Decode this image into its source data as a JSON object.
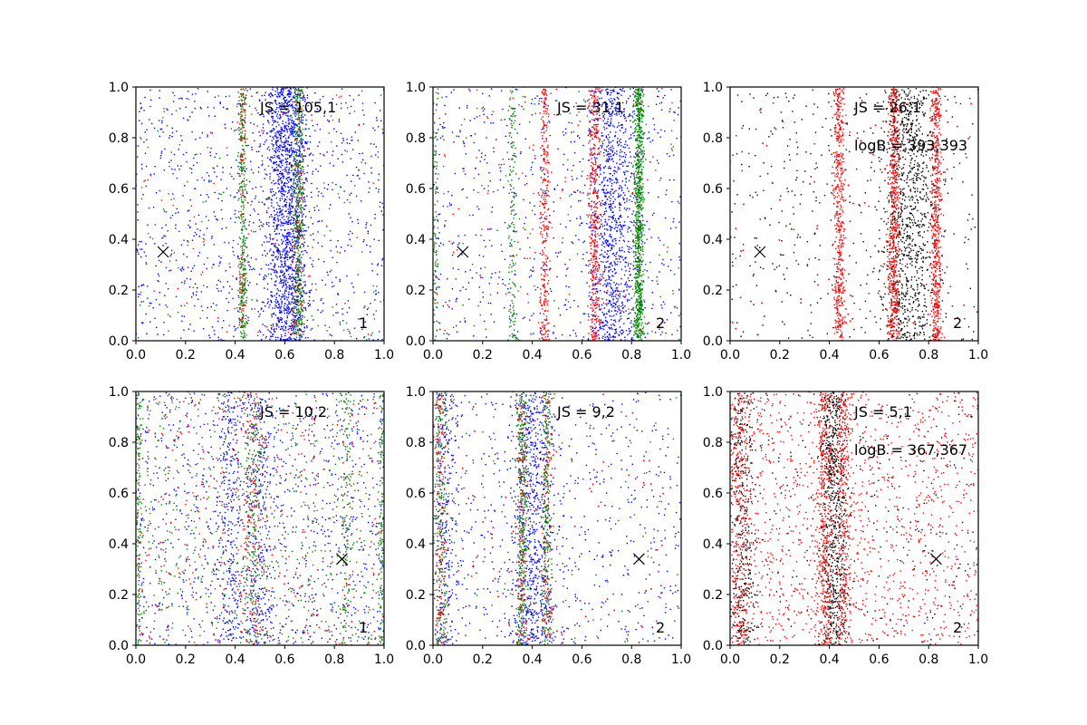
{
  "chart_data": [
    {
      "type": "scatter",
      "panel": "1",
      "annotations": [
        "JS = 105,1"
      ],
      "xlim": [
        0,
        1
      ],
      "ylim": [
        0,
        1
      ],
      "xticks": [
        "0.0",
        "0.2",
        "0.4",
        "0.6",
        "0.8",
        "1.0"
      ],
      "yticks": [
        "0.0",
        "0.2",
        "0.4",
        "0.6",
        "0.8",
        "1.0"
      ],
      "marker": {
        "x": 0.11,
        "y": 0.35
      },
      "series": [
        {
          "color": "#0000ff",
          "bands": [
            {
              "c": 0.61,
              "w": 0.085,
              "n": 1500
            },
            {
              "c": 0.5,
              "w": 0.55,
              "n": 900
            }
          ]
        },
        {
          "color": "#008000",
          "bands": [
            {
              "c": 0.43,
              "w": 0.016,
              "n": 360
            },
            {
              "c": 0.655,
              "w": 0.022,
              "n": 480
            },
            {
              "c": 0.5,
              "w": 0.55,
              "n": 120
            }
          ]
        },
        {
          "color": "#ff0000",
          "bands": [
            {
              "c": 0.43,
              "w": 0.016,
              "n": 90
            },
            {
              "c": 0.655,
              "w": 0.022,
              "n": 110
            },
            {
              "c": 0.5,
              "w": 0.55,
              "n": 120
            }
          ]
        }
      ]
    },
    {
      "type": "scatter",
      "panel": "2",
      "annotations": [
        "JS = 31,1"
      ],
      "xlim": [
        0,
        1
      ],
      "ylim": [
        0,
        1
      ],
      "xticks": [
        "0.0",
        "0.2",
        "0.4",
        "0.6",
        "0.8",
        "1.0"
      ],
      "yticks": [
        "0.0",
        "0.2",
        "0.4",
        "0.6",
        "0.8",
        "1.0"
      ],
      "marker": {
        "x": 0.12,
        "y": 0.35
      },
      "series": [
        {
          "color": "#0000ff",
          "bands": [
            {
              "c": 0.72,
              "w": 0.09,
              "n": 900
            },
            {
              "c": 0.5,
              "w": 0.55,
              "n": 700
            }
          ]
        },
        {
          "color": "#008000",
          "bands": [
            {
              "c": 0.83,
              "w": 0.02,
              "n": 900
            },
            {
              "c": 0.32,
              "w": 0.016,
              "n": 140
            },
            {
              "c": 0.01,
              "w": 0.012,
              "n": 90
            },
            {
              "c": 0.5,
              "w": 0.55,
              "n": 120
            }
          ]
        },
        {
          "color": "#ff0000",
          "bands": [
            {
              "c": 0.45,
              "w": 0.02,
              "n": 300
            },
            {
              "c": 0.65,
              "w": 0.022,
              "n": 420
            },
            {
              "c": 0.5,
              "w": 0.55,
              "n": 150
            }
          ]
        }
      ]
    },
    {
      "type": "scatter",
      "panel": "2",
      "annotations": [
        "JS = 26,1",
        "logB = 393,393"
      ],
      "xlim": [
        0,
        1
      ],
      "ylim": [
        0,
        1
      ],
      "xticks": [
        "0.0",
        "0.2",
        "0.4",
        "0.6",
        "0.8",
        "1.0"
      ],
      "yticks": [
        "0.0",
        "0.2",
        "0.4",
        "0.6",
        "0.8",
        "1.0"
      ],
      "marker": {
        "x": 0.12,
        "y": 0.35
      },
      "series": [
        {
          "color": "#000000",
          "bands": [
            {
              "c": 0.72,
              "w": 0.11,
              "n": 1000
            },
            {
              "c": 0.5,
              "w": 0.55,
              "n": 500
            }
          ]
        },
        {
          "color": "#ff0000",
          "bands": [
            {
              "c": 0.44,
              "w": 0.022,
              "n": 500
            },
            {
              "c": 0.66,
              "w": 0.025,
              "n": 600
            },
            {
              "c": 0.83,
              "w": 0.022,
              "n": 550
            },
            {
              "c": 0.5,
              "w": 0.55,
              "n": 150
            }
          ]
        }
      ]
    },
    {
      "type": "scatter",
      "panel": "1",
      "annotations": [
        "JS = 10,2"
      ],
      "xlim": [
        0,
        1
      ],
      "ylim": [
        0,
        1
      ],
      "xticks": [
        "0.0",
        "0.2",
        "0.4",
        "0.6",
        "0.8",
        "1.0"
      ],
      "yticks": [
        "0.0",
        "0.2",
        "0.4",
        "0.6",
        "0.8",
        "1.0"
      ],
      "marker": {
        "x": 0.83,
        "y": 0.34
      },
      "series": [
        {
          "color": "#0000ff",
          "bands": [
            {
              "c": 0.5,
              "w": 0.55,
              "n": 1100
            },
            {
              "c": 0.38,
              "w": 0.05,
              "n": 250
            },
            {
              "c": 0.5,
              "w": 0.05,
              "n": 250
            }
          ]
        },
        {
          "color": "#008000",
          "bands": [
            {
              "c": 0.5,
              "w": 0.55,
              "n": 550
            },
            {
              "c": 0.01,
              "w": 0.012,
              "n": 140
            },
            {
              "c": 0.99,
              "w": 0.012,
              "n": 140
            },
            {
              "c": 0.47,
              "w": 0.04,
              "n": 180
            },
            {
              "c": 0.85,
              "w": 0.025,
              "n": 120
            }
          ]
        },
        {
          "color": "#ff0000",
          "bands": [
            {
              "c": 0.5,
              "w": 0.55,
              "n": 450
            },
            {
              "c": 0.47,
              "w": 0.05,
              "n": 150
            }
          ]
        }
      ]
    },
    {
      "type": "scatter",
      "panel": "2",
      "annotations": [
        "JS = 9,2"
      ],
      "xlim": [
        0,
        1
      ],
      "ylim": [
        0,
        1
      ],
      "xticks": [
        "0.0",
        "0.2",
        "0.4",
        "0.6",
        "0.8",
        "1.0"
      ],
      "yticks": [
        "0.0",
        "0.2",
        "0.4",
        "0.6",
        "0.8",
        "1.0"
      ],
      "marker": {
        "x": 0.83,
        "y": 0.34
      },
      "series": [
        {
          "color": "#0000ff",
          "bands": [
            {
              "c": 0.4,
              "w": 0.09,
              "n": 700
            },
            {
              "c": 0.5,
              "w": 0.55,
              "n": 700
            },
            {
              "c": 0.05,
              "w": 0.05,
              "n": 250
            }
          ]
        },
        {
          "color": "#008000",
          "bands": [
            {
              "c": 0.36,
              "w": 0.025,
              "n": 350
            },
            {
              "c": 0.46,
              "w": 0.02,
              "n": 250
            },
            {
              "c": 0.03,
              "w": 0.03,
              "n": 250
            },
            {
              "c": 0.5,
              "w": 0.55,
              "n": 120
            }
          ]
        },
        {
          "color": "#ff0000",
          "bands": [
            {
              "c": 0.36,
              "w": 0.025,
              "n": 150
            },
            {
              "c": 0.46,
              "w": 0.02,
              "n": 120
            },
            {
              "c": 0.03,
              "w": 0.03,
              "n": 150
            },
            {
              "c": 0.5,
              "w": 0.55,
              "n": 180
            }
          ]
        }
      ]
    },
    {
      "type": "scatter",
      "panel": "2",
      "annotations": [
        "JS = 5,1",
        "logB = 367,367"
      ],
      "xlim": [
        0,
        1
      ],
      "ylim": [
        0,
        1
      ],
      "xticks": [
        "0.0",
        "0.2",
        "0.4",
        "0.6",
        "0.8",
        "1.0"
      ],
      "yticks": [
        "0.0",
        "0.2",
        "0.4",
        "0.6",
        "0.8",
        "1.0"
      ],
      "marker": {
        "x": 0.83,
        "y": 0.34
      },
      "series": [
        {
          "color": "#000000",
          "bands": [
            {
              "c": 0.42,
              "w": 0.05,
              "n": 700
            },
            {
              "c": 0.05,
              "w": 0.05,
              "n": 350
            },
            {
              "c": 0.5,
              "w": 0.55,
              "n": 300
            }
          ]
        },
        {
          "color": "#ff0000",
          "bands": [
            {
              "c": 0.5,
              "w": 0.55,
              "n": 1300
            },
            {
              "c": 0.38,
              "w": 0.03,
              "n": 350
            },
            {
              "c": 0.46,
              "w": 0.03,
              "n": 300
            },
            {
              "c": 0.04,
              "w": 0.04,
              "n": 300
            }
          ]
        }
      ]
    }
  ]
}
